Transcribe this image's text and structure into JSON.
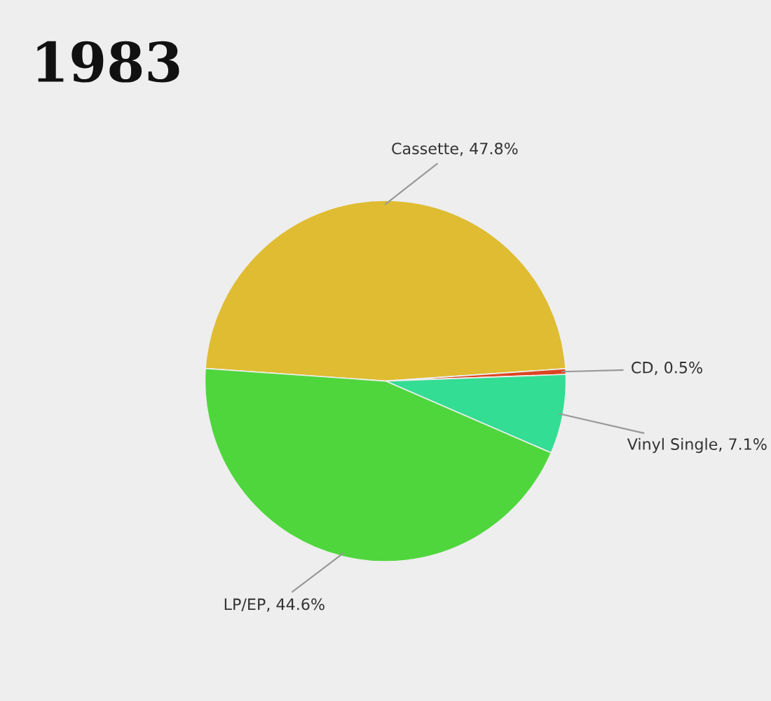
{
  "chart_data": {
    "type": "pie",
    "title": "1983",
    "categories": [
      "Cassette",
      "CD",
      "Vinyl Single",
      "LP/EP"
    ],
    "values": [
      47.8,
      0.5,
      7.1,
      44.6
    ],
    "value_labels": [
      "47.8%",
      "0.5%",
      "7.1%",
      "44.6%"
    ],
    "colors": [
      "#dfbc31",
      "#dd4420",
      "#33dd93",
      "#4fd63d"
    ]
  }
}
